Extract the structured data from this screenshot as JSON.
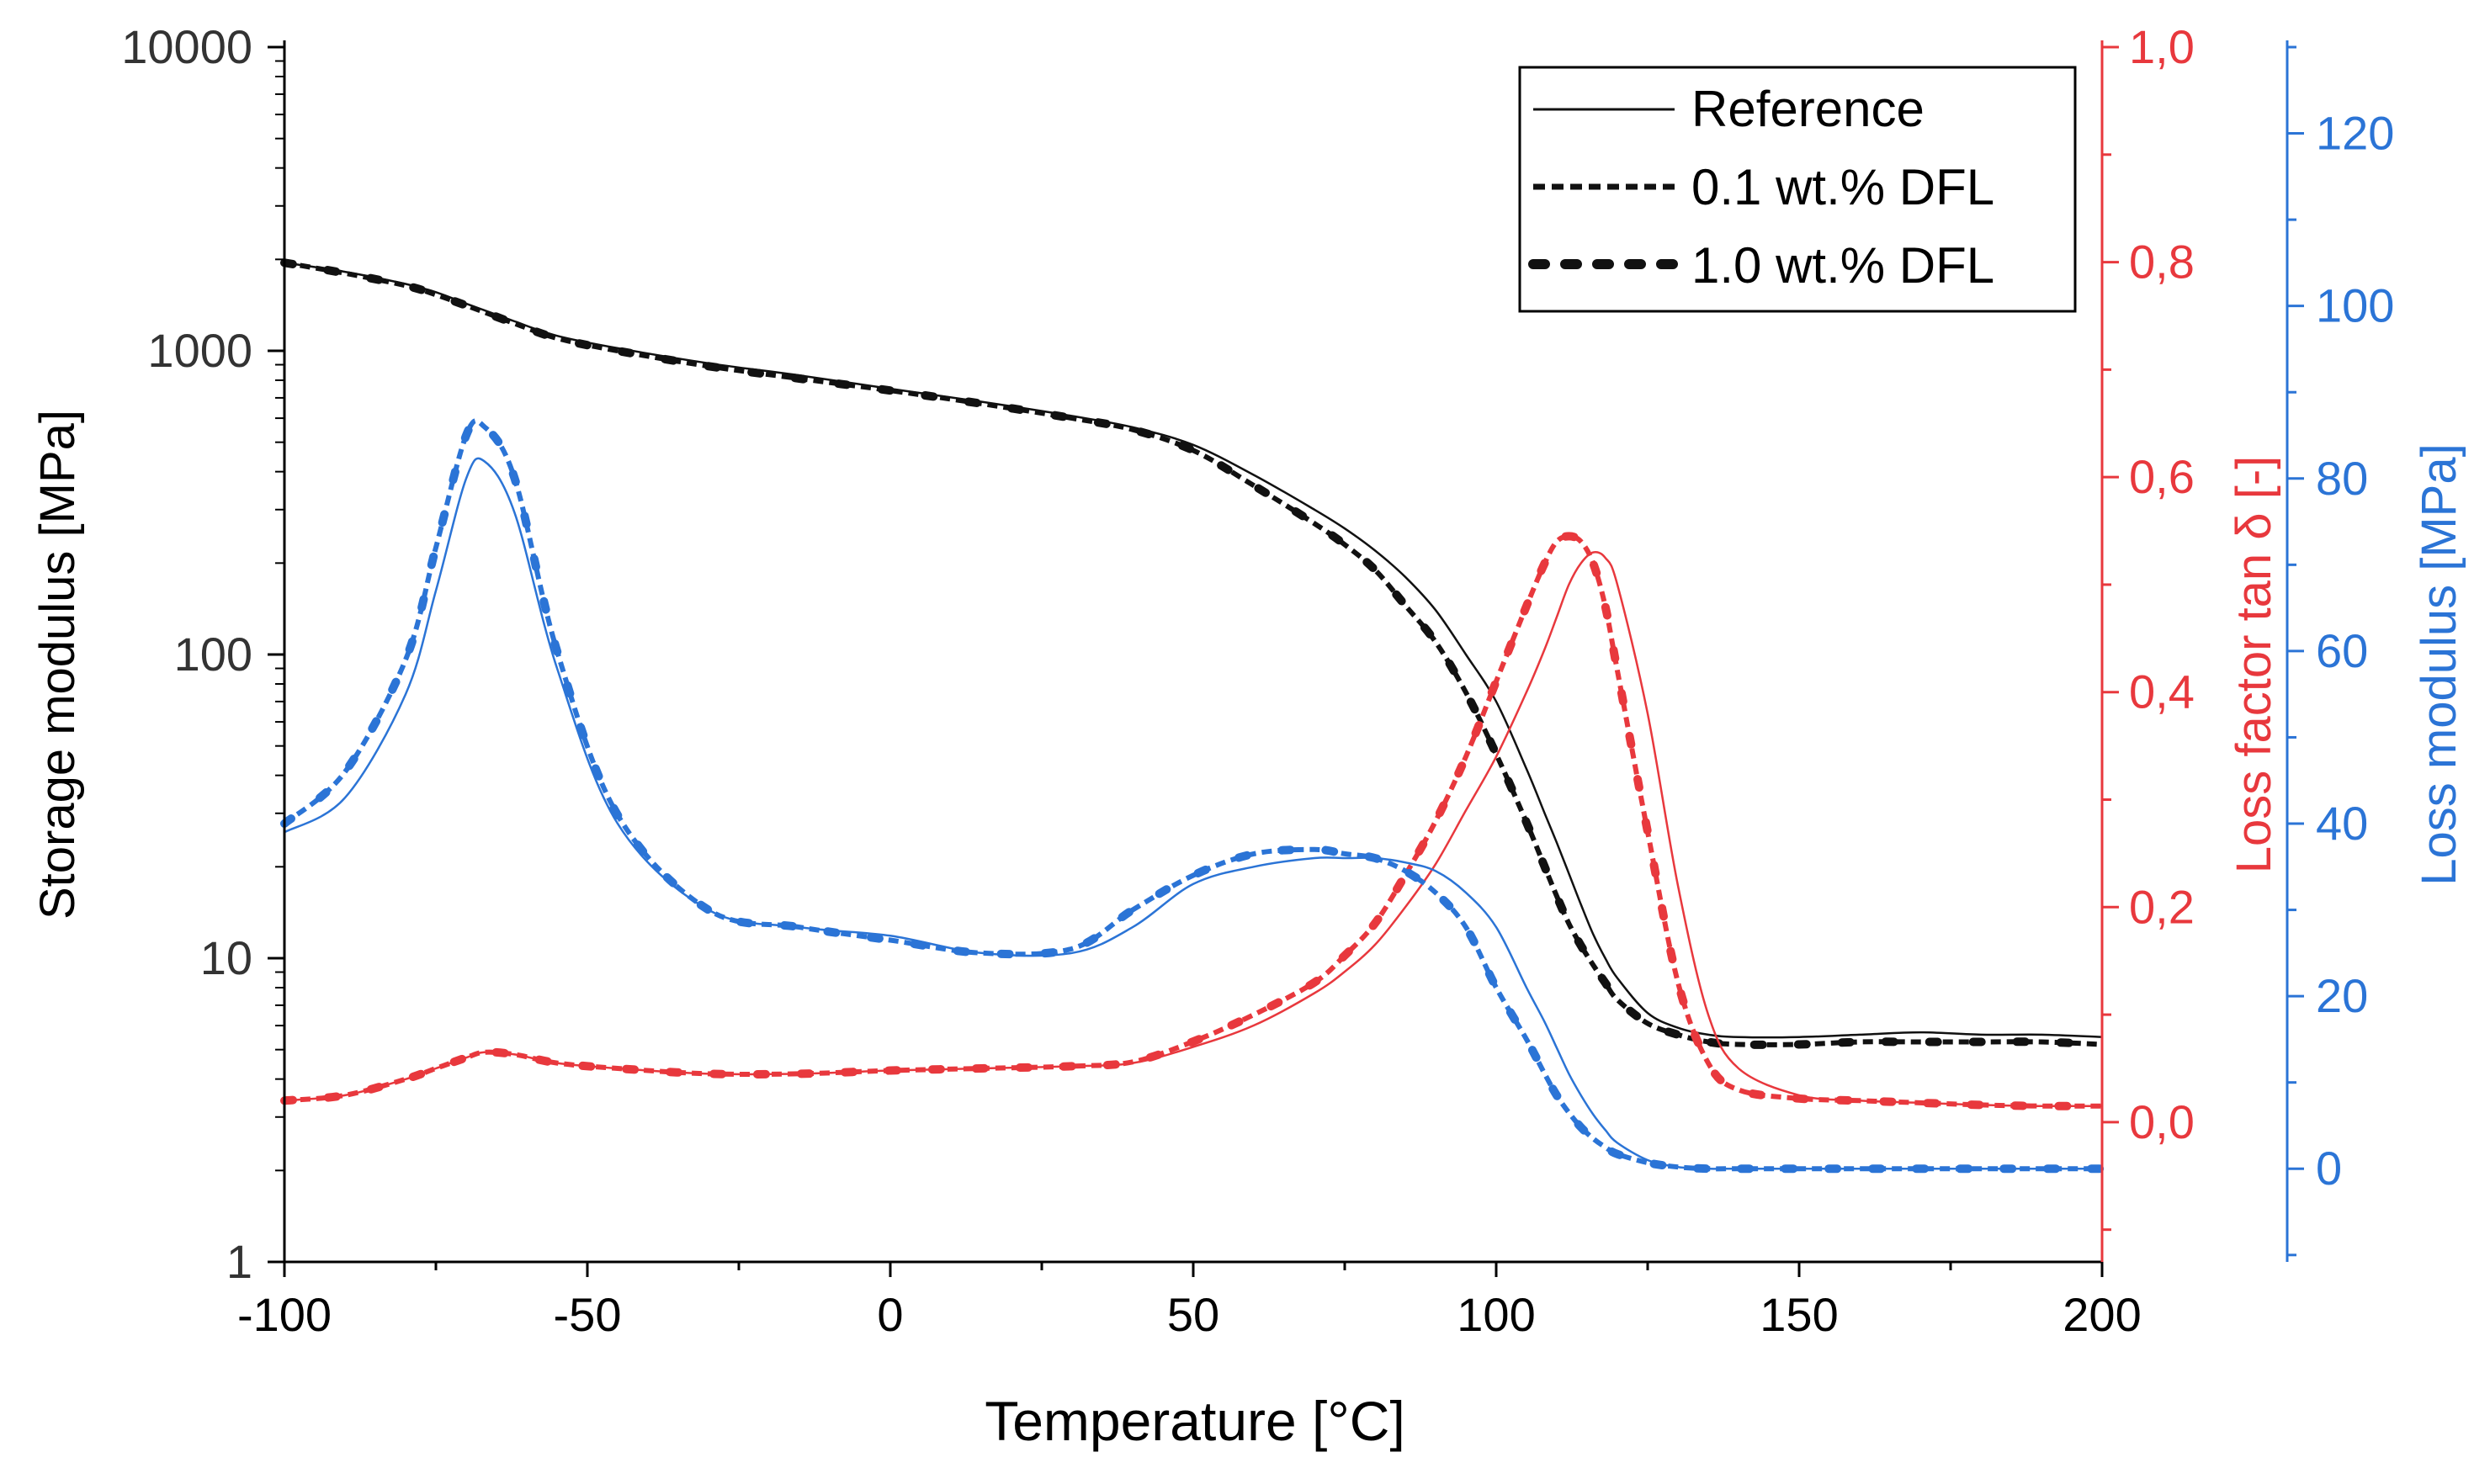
{
  "colors": {
    "black": "#111111",
    "red": "#e8383d",
    "blue": "#2b74d6",
    "axis_black": "#000000",
    "axis_red": "#e8383d",
    "axis_blue": "#2b74d6"
  },
  "chart_data": {
    "type": "line",
    "title": "",
    "xlabel": "Temperature [°C]",
    "ylabel_left": "Storage modulus [MPa]",
    "ylabel_right_red": "Loss factor tan δ [-]",
    "ylabel_right_blue": "Loss modulus [MPa]",
    "xlim": [
      -100,
      200
    ],
    "ylim_left": [
      1,
      10000
    ],
    "ylim_red": [
      -0.13,
      1.0
    ],
    "ylim_blue": [
      -10.8,
      130
    ],
    "x_ticks": [
      "-100",
      "-50",
      "0",
      "50",
      "100",
      "150",
      "200"
    ],
    "y_left_ticks": [
      "1",
      "10",
      "100",
      "1000",
      "10000"
    ],
    "y_red_ticks": [
      "0,0",
      "0,2",
      "0,4",
      "0,6",
      "0,8",
      "1,0"
    ],
    "y_blue_ticks": [
      "0",
      "20",
      "40",
      "60",
      "80",
      "100",
      "120"
    ],
    "legend": {
      "position": "top-right",
      "entries": [
        "Reference",
        "0.1 wt.% DFL",
        "1.0 wt.% DFL"
      ]
    },
    "x": [
      -100,
      -90,
      -80,
      -75,
      -70,
      -67,
      -62,
      -55,
      -45,
      -30,
      -15,
      0,
      15,
      30,
      40,
      50,
      60,
      70,
      75,
      80,
      85,
      90,
      95,
      100,
      105,
      108,
      110,
      112,
      114,
      116,
      118,
      120,
      125,
      130,
      135,
      140,
      150,
      160,
      170,
      180,
      190,
      200
    ],
    "series": [
      {
        "name": "Reference",
        "group": "storage",
        "style": "solid",
        "values": [
          1950,
          1820,
          1660,
          1560,
          1430,
          1360,
          1250,
          1120,
          1020,
          910,
          830,
          750,
          680,
          610,
          560,
          490,
          390,
          300,
          260,
          220,
          180,
          140,
          100,
          70,
          42,
          30,
          24,
          19,
          15,
          12,
          10,
          8.6,
          6.6,
          5.9,
          5.6,
          5.5,
          5.5,
          5.6,
          5.7,
          5.6,
          5.6,
          5.5
        ]
      },
      {
        "name": "0.1 wt.% DFL",
        "group": "storage",
        "style": "dashed",
        "values": [
          1950,
          1800,
          1640,
          1530,
          1410,
          1340,
          1230,
          1100,
          1000,
          890,
          810,
          740,
          670,
          600,
          550,
          470,
          360,
          270,
          230,
          190,
          145,
          110,
          75,
          47,
          28,
          20,
          16,
          13,
          11,
          9.5,
          8.3,
          7.3,
          6.1,
          5.6,
          5.3,
          5.2,
          5.2,
          5.3,
          5.3,
          5.3,
          5.3,
          5.2
        ]
      },
      {
        "name": "1.0 wt.% DFL",
        "group": "storage",
        "style": "dotted",
        "values": [
          1950,
          1800,
          1640,
          1530,
          1410,
          1340,
          1230,
          1100,
          1000,
          890,
          810,
          740,
          670,
          600,
          550,
          470,
          360,
          270,
          230,
          190,
          145,
          110,
          75,
          47,
          28,
          20,
          16,
          13,
          11,
          9.5,
          8.3,
          7.3,
          6.1,
          5.6,
          5.3,
          5.2,
          5.2,
          5.3,
          5.3,
          5.3,
          5.3,
          5.2
        ]
      },
      {
        "name": "Reference tan δ",
        "group": "tan",
        "style": "solid",
        "values": [
          0.02,
          0.025,
          0.04,
          0.05,
          0.06,
          0.065,
          0.063,
          0.055,
          0.05,
          0.045,
          0.045,
          0.048,
          0.05,
          0.052,
          0.055,
          0.07,
          0.09,
          0.12,
          0.14,
          0.165,
          0.2,
          0.24,
          0.29,
          0.34,
          0.4,
          0.44,
          0.47,
          0.5,
          0.52,
          0.53,
          0.525,
          0.5,
          0.38,
          0.22,
          0.1,
          0.05,
          0.025,
          0.02,
          0.018,
          0.016,
          0.015,
          0.015
        ]
      },
      {
        "name": "0.1 wt.% DFL tan δ",
        "group": "tan",
        "style": "dashed",
        "values": [
          0.02,
          0.025,
          0.04,
          0.05,
          0.06,
          0.065,
          0.063,
          0.055,
          0.05,
          0.045,
          0.045,
          0.048,
          0.05,
          0.052,
          0.056,
          0.075,
          0.1,
          0.13,
          0.155,
          0.185,
          0.23,
          0.28,
          0.34,
          0.41,
          0.48,
          0.52,
          0.54,
          0.545,
          0.54,
          0.52,
          0.48,
          0.42,
          0.27,
          0.13,
          0.055,
          0.03,
          0.022,
          0.02,
          0.018,
          0.016,
          0.015,
          0.015
        ]
      },
      {
        "name": "1.0 wt.% DFL tan δ",
        "group": "tan",
        "style": "dotted",
        "values": [
          0.02,
          0.025,
          0.04,
          0.05,
          0.06,
          0.065,
          0.063,
          0.055,
          0.05,
          0.045,
          0.045,
          0.048,
          0.05,
          0.052,
          0.056,
          0.075,
          0.1,
          0.13,
          0.155,
          0.185,
          0.23,
          0.28,
          0.34,
          0.41,
          0.48,
          0.52,
          0.54,
          0.545,
          0.54,
          0.52,
          0.48,
          0.42,
          0.27,
          0.13,
          0.055,
          0.03,
          0.022,
          0.02,
          0.018,
          0.016,
          0.015,
          0.015
        ]
      },
      {
        "name": "Reference E''",
        "group": "loss",
        "style": "solid",
        "values": [
          39,
          43,
          55,
          67,
          80,
          82,
          76,
          58,
          40,
          30,
          28,
          27,
          25,
          25,
          28,
          33,
          35,
          36,
          36,
          36,
          35.5,
          34.5,
          32,
          28,
          21,
          17,
          14,
          11,
          8.5,
          6.3,
          4.5,
          3,
          1,
          0.2,
          0,
          0,
          0,
          0,
          0,
          0,
          0,
          0
        ]
      },
      {
        "name": "0.1 wt.% DFL E''",
        "group": "loss",
        "style": "dashed",
        "values": [
          40,
          46,
          59,
          72,
          85,
          86,
          80,
          60,
          41,
          30,
          28,
          26.5,
          25,
          25.5,
          30,
          34,
          36.5,
          37,
          36.5,
          36,
          34.5,
          32,
          28,
          21,
          15,
          11,
          8.5,
          6.5,
          4.8,
          3.5,
          2.5,
          1.7,
          0.7,
          0.2,
          0,
          0,
          0,
          0,
          0,
          0,
          0,
          0
        ]
      },
      {
        "name": "1.0 wt.% DFL E''",
        "group": "loss",
        "style": "dotted",
        "values": [
          40,
          46,
          59,
          72,
          85,
          86,
          80,
          60,
          41,
          30,
          28,
          26.5,
          25,
          25.5,
          30,
          34,
          36.5,
          37,
          36.5,
          36,
          34.5,
          32,
          28,
          21,
          15,
          11,
          8.5,
          6.5,
          4.8,
          3.5,
          2.5,
          1.7,
          0.7,
          0.2,
          0,
          0,
          0,
          0,
          0,
          0,
          0,
          0
        ]
      }
    ]
  }
}
